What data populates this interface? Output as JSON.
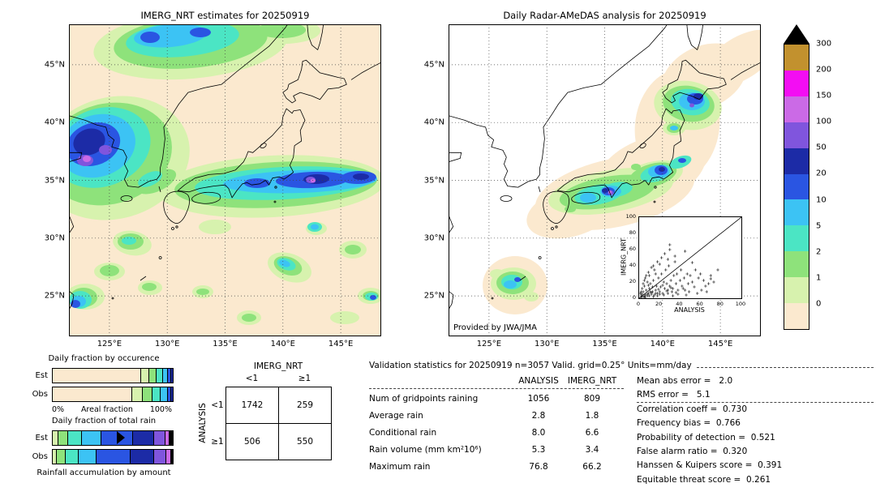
{
  "palette": {
    "colors_low_to_high": [
      "#fbe9cf",
      "#d7f2ae",
      "#8ee27b",
      "#4be5c4",
      "#3cc3f4",
      "#2a55e2",
      "#1c2ba6",
      "#8055dd",
      "#cb6ae6",
      "#f30df3",
      "#c2912e"
    ]
  },
  "colorbar": {
    "labels_top_to_bottom": [
      "300",
      "200",
      "150",
      "100",
      "50",
      "20",
      "10",
      "5",
      "2",
      "1",
      "0"
    ],
    "over_color": "#000000",
    "units": "mm/day"
  },
  "chart_data": [
    {
      "type": "map",
      "title": "IMERG_NRT estimates for 20250919",
      "x_ticks": [
        "125°E",
        "130°E",
        "135°E",
        "140°E",
        "145°E"
      ],
      "y_ticks": [
        "45°N",
        "40°N",
        "35°N",
        "30°N",
        "25°N"
      ],
      "units": "mm/day",
      "description": "Gridded IMERG_NRT precipitation estimate field over Japan/Korea region, shaded with the 0-300 mm/day colorbar"
    },
    {
      "type": "map",
      "title": "Daily Radar-AMeDAS analysis for 20250919",
      "credit": "Provided by JWA/JMA",
      "x_ticks": [
        "125°E",
        "130°E",
        "135°E",
        "140°E",
        "145°E"
      ],
      "y_ticks": [
        "45°N",
        "40°N",
        "35°N",
        "30°N",
        "25°N"
      ],
      "units": "mm/day",
      "description": "Radar-AMeDAS analyzed precipitation within radar coverage around Japan, white outside coverage"
    },
    {
      "type": "bar",
      "subtype": "stacked_horizontal_percent",
      "title": "Daily fraction by occurence",
      "row_labels": [
        "Est",
        "Obs"
      ],
      "axis": {
        "left": "0%",
        "label": "Areal fraction",
        "right": "100%"
      },
      "class_labels": [
        "0",
        "0-1",
        "1-2",
        "2-5",
        "5-10",
        "10-20",
        "20-50"
      ],
      "series": [
        {
          "name": "Est",
          "marker_pct": null,
          "segments": [
            [
              0,
              73
            ],
            [
              1,
              7
            ],
            [
              2,
              6
            ],
            [
              3,
              5.5
            ],
            [
              4,
              4
            ],
            [
              5,
              2.5
            ],
            [
              6,
              2
            ]
          ]
        },
        {
          "name": "Obs",
          "marker_pct": null,
          "segments": [
            [
              0,
              65.5
            ],
            [
              1,
              9
            ],
            [
              2,
              8
            ],
            [
              3,
              7
            ],
            [
              4,
              5.5
            ],
            [
              5,
              3
            ],
            [
              6,
              2
            ]
          ]
        }
      ],
      "note": "segment = [colorbar cell index, percent width]; percents estimated from pixels"
    },
    {
      "type": "bar",
      "subtype": "stacked_horizontal_percent",
      "title": "Daily fraction of total rain",
      "footer": "Rainfall accumulation by amount",
      "row_labels": [
        "Est",
        "Obs"
      ],
      "class_labels": [
        "0-1",
        "1-2",
        "2-5",
        "5-10",
        "10-20",
        "20-50",
        "50-100",
        "100-150",
        ">150"
      ],
      "series": [
        {
          "name": "Est",
          "marker_pct": 57,
          "segments": [
            [
              1,
              4
            ],
            [
              2,
              8
            ],
            [
              3,
              12
            ],
            [
              4,
              16
            ],
            [
              5,
              26
            ],
            [
              6,
              18
            ],
            [
              7,
              9
            ],
            [
              8,
              4
            ],
            [
              -1,
              3
            ]
          ]
        },
        {
          "name": "Obs",
          "marker_pct": null,
          "segments": [
            [
              1,
              3
            ],
            [
              2,
              7
            ],
            [
              3,
              11
            ],
            [
              4,
              15
            ],
            [
              5,
              28
            ],
            [
              6,
              20
            ],
            [
              7,
              10
            ],
            [
              8,
              4
            ],
            [
              -1,
              2
            ]
          ]
        }
      ],
      "note": "segment = [colorbar cell index, percent width]; percents estimated from pixels"
    },
    {
      "type": "table",
      "name": "contingency-table",
      "col_group": "IMERG_NRT",
      "row_group": "ANALYSIS",
      "col_labels": [
        "<1",
        "≥1"
      ],
      "row_labels": [
        "<1",
        "≥1"
      ],
      "values": [
        [
          1742,
          259
        ],
        [
          506,
          550
        ]
      ]
    },
    {
      "type": "scatter",
      "xlabel": "ANALYSIS",
      "ylabel": "IMERG_NRT",
      "xlim": [
        0,
        100
      ],
      "ylim": [
        0,
        100
      ],
      "x_ticks": [
        0,
        20,
        40,
        60,
        80,
        100
      ],
      "y_ticks": [
        0,
        20,
        40,
        60,
        80,
        100
      ],
      "identity_line": true,
      "points": [
        [
          2,
          1
        ],
        [
          3,
          5
        ],
        [
          5,
          2
        ],
        [
          4,
          8
        ],
        [
          6,
          4
        ],
        [
          8,
          3
        ],
        [
          7,
          10
        ],
        [
          9,
          6
        ],
        [
          10,
          12
        ],
        [
          12,
          5
        ],
        [
          11,
          18
        ],
        [
          13,
          8
        ],
        [
          15,
          4
        ],
        [
          14,
          22
        ],
        [
          16,
          10
        ],
        [
          18,
          6
        ],
        [
          17,
          15
        ],
        [
          19,
          25
        ],
        [
          20,
          8
        ],
        [
          21,
          14
        ],
        [
          22,
          30
        ],
        [
          23,
          6
        ],
        [
          25,
          12
        ],
        [
          24,
          20
        ],
        [
          26,
          35
        ],
        [
          28,
          10
        ],
        [
          27,
          18
        ],
        [
          30,
          15
        ],
        [
          29,
          40
        ],
        [
          32,
          8
        ],
        [
          31,
          22
        ],
        [
          34,
          28
        ],
        [
          33,
          12
        ],
        [
          35,
          45
        ],
        [
          36,
          18
        ],
        [
          38,
          10
        ],
        [
          37,
          30
        ],
        [
          40,
          22
        ],
        [
          42,
          15
        ],
        [
          41,
          35
        ],
        [
          44,
          25
        ],
        [
          45,
          10
        ],
        [
          47,
          30
        ],
        [
          48,
          18
        ],
        [
          50,
          28
        ],
        [
          52,
          20
        ],
        [
          55,
          35
        ],
        [
          58,
          25
        ],
        [
          60,
          30
        ],
        [
          63,
          22
        ],
        [
          65,
          15
        ],
        [
          70,
          28
        ],
        [
          73,
          20
        ],
        [
          77,
          35
        ],
        [
          70,
          24
        ],
        [
          15,
          35
        ],
        [
          10,
          28
        ],
        [
          8,
          20
        ],
        [
          5,
          15
        ],
        [
          3,
          12
        ],
        [
          2,
          8
        ],
        [
          6,
          25
        ],
        [
          12,
          38
        ],
        [
          18,
          45
        ],
        [
          22,
          50
        ],
        [
          9,
          32
        ],
        [
          4,
          18
        ],
        [
          7,
          28
        ],
        [
          14,
          40
        ],
        [
          25,
          55
        ],
        [
          30,
          60
        ],
        [
          35,
          52
        ],
        [
          20,
          42
        ],
        [
          16,
          30
        ],
        [
          28,
          48
        ],
        [
          11,
          8
        ],
        [
          13,
          14
        ],
        [
          19,
          11
        ],
        [
          23,
          16
        ],
        [
          27,
          9
        ],
        [
          31,
          13
        ],
        [
          36,
          7
        ],
        [
          43,
          12
        ],
        [
          49,
          8
        ],
        [
          54,
          14
        ],
        [
          61,
          10
        ],
        [
          68,
          18
        ],
        [
          2,
          3
        ],
        [
          4,
          2
        ],
        [
          6,
          1
        ],
        [
          8,
          5
        ],
        [
          10,
          3
        ],
        [
          12,
          7
        ],
        [
          14,
          2
        ],
        [
          16,
          6
        ],
        [
          18,
          3
        ],
        [
          20,
          5
        ],
        [
          24,
          4
        ],
        [
          28,
          6
        ],
        [
          33,
          3
        ],
        [
          38,
          5
        ],
        [
          46,
          4
        ],
        [
          57,
          6
        ],
        [
          66,
          8
        ],
        [
          30,
          66
        ],
        [
          45,
          58
        ],
        [
          52,
          44
        ],
        [
          5,
          22
        ],
        [
          9,
          16
        ],
        [
          1,
          6
        ]
      ],
      "note": "point positions estimated from pixels"
    },
    {
      "type": "table",
      "name": "validation-statistics",
      "title": "Validation statistics for 20250919  n=3057 Valid. grid=0.25° Units=mm/day",
      "columns": [
        "ANALYSIS",
        "IMERG_NRT"
      ],
      "rows": [
        [
          "Num of gridpoints raining",
          "1056",
          "809"
        ],
        [
          "Average rain",
          "2.8",
          "1.8"
        ],
        [
          "Conditional rain",
          "8.0",
          "6.6"
        ],
        [
          "Rain volume (mm km²10⁶)",
          "5.3",
          "3.4"
        ],
        [
          "Maximum rain",
          "76.8",
          "66.2"
        ]
      ],
      "right_lines": [
        "Mean abs error =   2.0",
        "RMS error =   5.1",
        "Correlation coeff =  0.730",
        "Frequency bias =  0.766",
        "Probability of detection =  0.521",
        "False alarm ratio =  0.320",
        "Hanssen & Kuipers score =  0.391",
        "Equitable threat score =  0.261"
      ]
    }
  ]
}
